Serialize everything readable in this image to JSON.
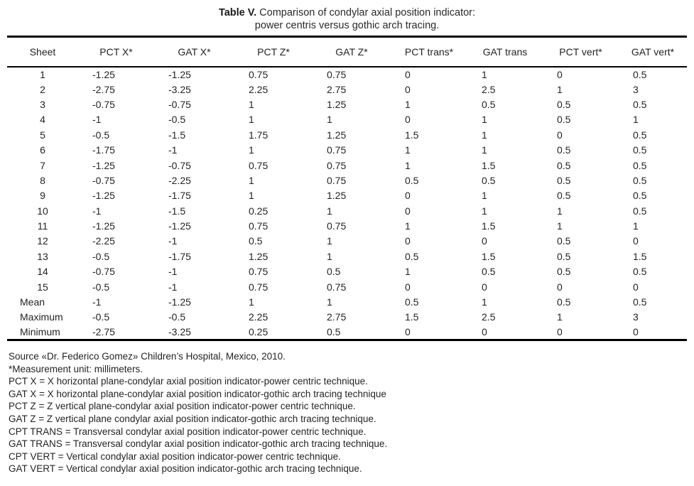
{
  "table": {
    "title_bold": "Table V.",
    "title_rest": " Comparison of condylar axial position indicator:",
    "title_line2": "power centris versus gothic arch tracing.",
    "columns": [
      "Sheet",
      "PCT X*",
      "GAT X*",
      "PCT Z*",
      "GAT Z*",
      "PCT trans*",
      "GAT trans",
      "PCT vert*",
      "GAT vert*"
    ],
    "rows": [
      [
        "1",
        "-1.25",
        "-1.25",
        "0.75",
        "0.75",
        "0",
        "1",
        "0",
        "0.5"
      ],
      [
        "2",
        "-2.75",
        "-3.25",
        "2.25",
        "2.75",
        "0",
        "2.5",
        "1",
        "3"
      ],
      [
        "3",
        "-0.75",
        "-0.75",
        "1",
        "1.25",
        "1",
        "0.5",
        "0.5",
        "0.5"
      ],
      [
        "4",
        "-1",
        "-0.5",
        "1",
        "1",
        "0",
        "1",
        "0.5",
        "1"
      ],
      [
        "5",
        "-0.5",
        "-1.5",
        "1.75",
        "1.25",
        "1.5",
        "1",
        "0",
        "0.5"
      ],
      [
        "6",
        "-1.75",
        "-1",
        "1",
        "0.75",
        "1",
        "1",
        "0.5",
        "0.5"
      ],
      [
        "7",
        "-1.25",
        "-0.75",
        "0.75",
        "0.75",
        "1",
        "1.5",
        "0.5",
        "0.5"
      ],
      [
        "8",
        "-0.75",
        "-2.25",
        "1",
        "0.75",
        "0.5",
        "0.5",
        "0.5",
        "0.5"
      ],
      [
        "9",
        "-1.25",
        "-1.75",
        "1",
        "1.25",
        "0",
        "1",
        "0.5",
        "0.5"
      ],
      [
        "10",
        "-1",
        "-1.5",
        "0.25",
        "1",
        "0",
        "1",
        "1",
        "0.5"
      ],
      [
        "11",
        "-1.25",
        "-1.25",
        "0.75",
        "0.75",
        "1",
        "1.5",
        "1",
        "1"
      ],
      [
        "12",
        "-2.25",
        "-1",
        "0.5",
        "1",
        "0",
        "0",
        "0.5",
        "0"
      ],
      [
        "13",
        "-0.5",
        "-1.75",
        "1.25",
        "1",
        "0.5",
        "1.5",
        "0.5",
        "1.5"
      ],
      [
        "14",
        "-0.75",
        "-1",
        "0.75",
        "0.5",
        "1",
        "0.5",
        "0.5",
        "0.5"
      ],
      [
        "15",
        "-0.5",
        "-1",
        "0.75",
        "0.75",
        "0",
        "0",
        "0",
        "0"
      ],
      [
        "Mean",
        "-1",
        "-1.25",
        "1",
        "1",
        "0.5",
        "1",
        "0.5",
        "0.5"
      ],
      [
        "Maximum",
        "-0.5",
        "-0.5",
        "2.25",
        "2.75",
        "1.5",
        "2.5",
        "1",
        "3"
      ],
      [
        "Minimum",
        "-2.75",
        "-3.25",
        "0.25",
        "0.5",
        "0",
        "0",
        "0",
        "0"
      ]
    ]
  },
  "footnotes": [
    "Source «Dr. Federico Gomez» Children’s Hospital, Mexico, 2010.",
    "*Measurement unit: millimeters.",
    "PCT X = X horizontal plane-condylar axial position indicator-power centric technique.",
    "GAT X = X horizontal plane-condylar axial position indicator-gothic arch tracing technique",
    "PCT Z = Z vertical plane-condylar axial position indicator-power centric technique.",
    "GAT Z = Z vertical plane condylar axial position indicator-gothic arch tracing technique.",
    "CPT TRANS = Transversal condylar axial position indicator-power centric technique.",
    "GAT TRANS = Transversal condylar axial position indicator-gothic arch tracing technique.",
    "CPT VERT = Vertical condylar axial position indicator-power centric technique.",
    "GAT VERT = Vertical condylar axial position indicator-gothic arch tracing technique."
  ]
}
